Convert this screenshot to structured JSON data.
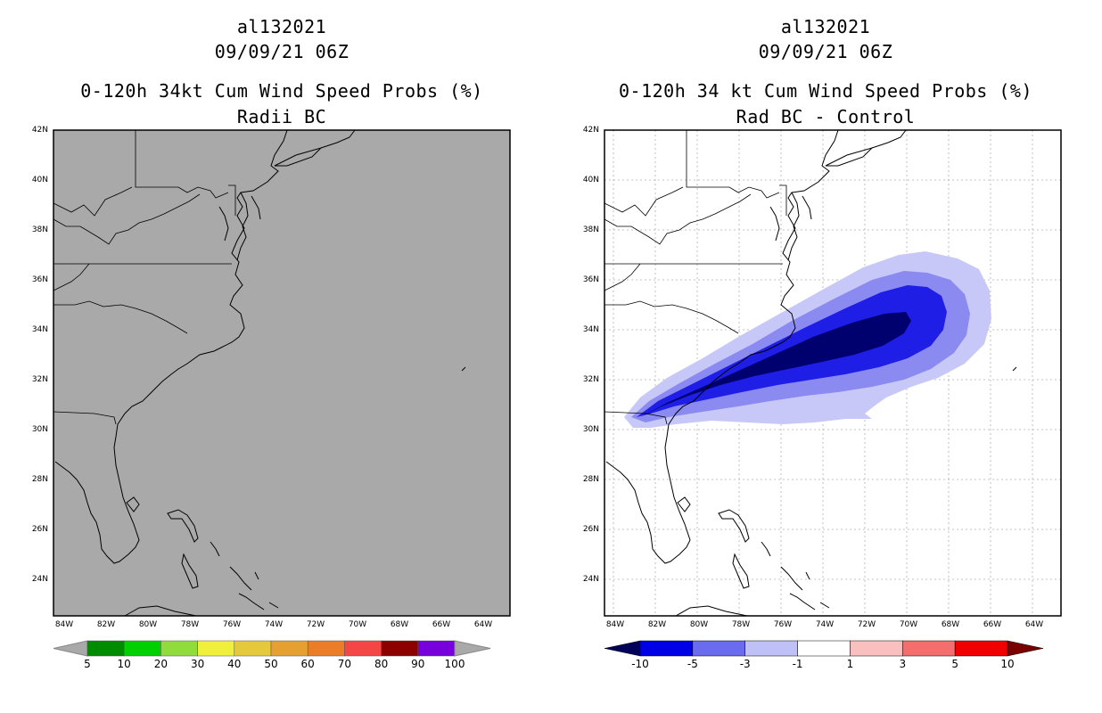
{
  "left_panel": {
    "title_line1": "al132021",
    "title_line2": "09/09/21 06Z",
    "title_line3": "0-120h 34kt Cum Wind Speed Probs (%)",
    "title_line4": "Radii BC",
    "colorbar_labels": [
      "5",
      "10",
      "20",
      "30",
      "40",
      "50",
      "60",
      "70",
      "80",
      "90",
      "100"
    ],
    "colorbar_colors": [
      "#008c00",
      "#00d000",
      "#90dc3c",
      "#f0f03c",
      "#e6c83c",
      "#e6a032",
      "#eb7d28",
      "#f54646",
      "#8c0000",
      "#7800dc"
    ],
    "background_fill": "#a9a9a9"
  },
  "right_panel": {
    "title_line1": "al132021",
    "title_line2": "09/09/21 06Z",
    "title_line3": "0-120h 34 kt Cum Wind Speed Probs (%)",
    "title_line4": "Rad BC - Control",
    "colorbar_labels": [
      "-10",
      "-5",
      "-3",
      "-1",
      "1",
      "3",
      "5",
      "10"
    ],
    "colorbar_colors": [
      "#00005a",
      "#0000e6",
      "#6b6bf0",
      "#c0c0f8",
      "#ffffff",
      "#fac0c0",
      "#f56e6e",
      "#f00000",
      "#780000"
    ],
    "contour_colors": [
      "#c8c8f8",
      "#8a8af0",
      "#1e1ee6",
      "#00006e"
    ]
  },
  "axes": {
    "lat_labels": [
      "42N",
      "40N",
      "38N",
      "36N",
      "34N",
      "32N",
      "30N",
      "28N",
      "26N",
      "24N"
    ],
    "lon_labels": [
      "84W",
      "82W",
      "80W",
      "78W",
      "76W",
      "74W",
      "72W",
      "70W",
      "68W",
      "66W",
      "64W"
    ]
  }
}
